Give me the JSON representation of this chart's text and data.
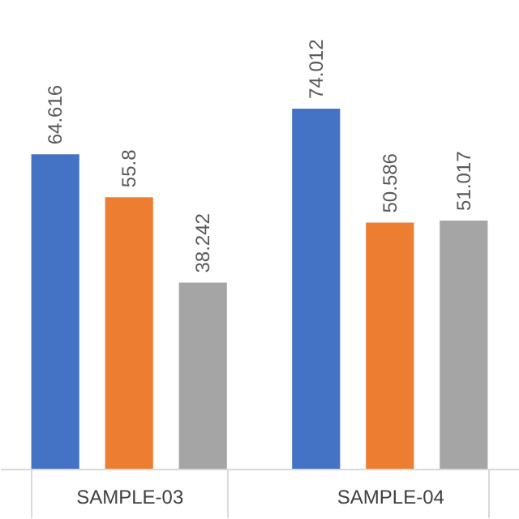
{
  "chart_data": {
    "type": "bar",
    "categories": [
      "SAMPLE-03",
      "SAMPLE-04"
    ],
    "series": [
      {
        "color": "#4472c4",
        "values": [
          64.616,
          74.012
        ]
      },
      {
        "color": "#ed7d31",
        "values": [
          55.8,
          50.586
        ]
      },
      {
        "color": "#a5a5a5",
        "values": [
          38.242,
          51.017
        ]
      }
    ],
    "data_labels": true,
    "tick_labels": "x"
  }
}
